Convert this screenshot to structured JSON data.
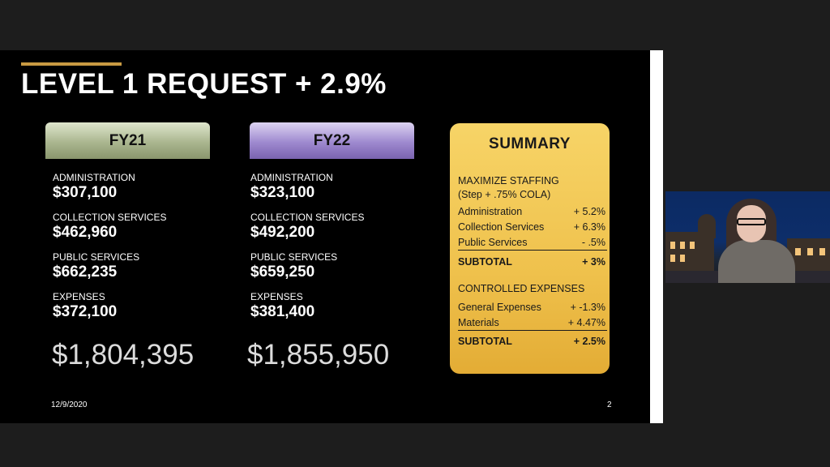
{
  "slide": {
    "title": "LEVEL 1 REQUEST + 2.9%",
    "date": "12/9/2020",
    "page_number": "2"
  },
  "fy21": {
    "header": "FY21",
    "items": [
      {
        "label": "ADMINISTRATION",
        "value": "$307,100"
      },
      {
        "label": "COLLECTION SERVICES",
        "value": "$462,960"
      },
      {
        "label": "PUBLIC SERVICES",
        "value": "$662,235"
      },
      {
        "label": "EXPENSES",
        "value": "$372,100"
      }
    ],
    "total": "$1,804,395"
  },
  "fy22": {
    "header": "FY22",
    "items": [
      {
        "label": "ADMINISTRATION",
        "value": "$323,100"
      },
      {
        "label": "COLLECTION SERVICES",
        "value": "$492,200"
      },
      {
        "label": "PUBLIC SERVICES",
        "value": "$659,250"
      },
      {
        "label": "EXPENSES",
        "value": "$381,400"
      }
    ],
    "total": "$1,855,950"
  },
  "summary": {
    "title": "SUMMARY",
    "staffing_heading": "MAXIMIZE STAFFING",
    "staffing_sub": "(Step + .75% COLA)",
    "staffing_rows": [
      {
        "label": "Administration",
        "pct": "+ 5.2%"
      },
      {
        "label": "Collection Services",
        "pct": "+ 6.3%"
      },
      {
        "label": "Public Services",
        "pct": "- .5%"
      }
    ],
    "staffing_subtotal_label": "SUBTOTAL",
    "staffing_subtotal_pct": "+ 3%",
    "expenses_heading": "CONTROLLED EXPENSES",
    "expenses_rows": [
      {
        "label": "General Expenses",
        "pct": "+ -1.3%"
      },
      {
        "label": "Materials",
        "pct": "+ 4.47%"
      }
    ],
    "expenses_subtotal_label": "SUBTOTAL",
    "expenses_subtotal_pct": "+ 2.5%"
  },
  "colors": {
    "accent": "#c89a42",
    "fy21_header": "#aab68f",
    "fy22_header": "#9e89cf",
    "summary_card": "#efc14c"
  }
}
